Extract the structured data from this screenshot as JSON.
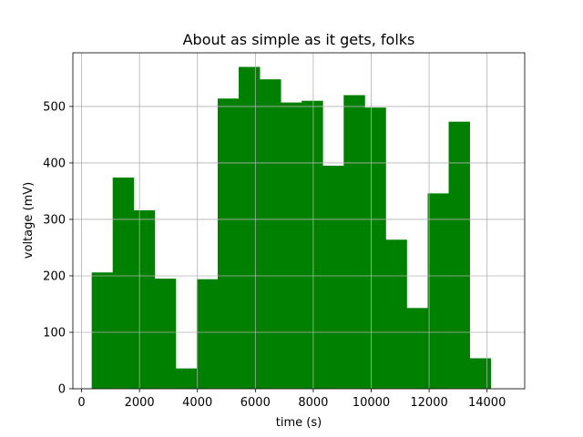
{
  "chart_data": {
    "type": "bar",
    "title": "About as simple as it gets, folks",
    "xlabel": "time (s)",
    "ylabel": "voltage (mV)",
    "xlim": [
      -300,
      15300
    ],
    "ylim": [
      0,
      595
    ],
    "xticks": [
      0,
      2000,
      4000,
      6000,
      8000,
      10000,
      12000,
      14000
    ],
    "yticks": [
      0,
      100,
      200,
      300,
      400,
      500
    ],
    "grid": true,
    "bar_color": "#008000",
    "bins": [
      {
        "x0": 350,
        "x1": 1075,
        "value": 206
      },
      {
        "x0": 1075,
        "x1": 1800,
        "value": 374
      },
      {
        "x0": 1800,
        "x1": 2525,
        "value": 316
      },
      {
        "x0": 2525,
        "x1": 3250,
        "value": 195
      },
      {
        "x0": 3250,
        "x1": 3975,
        "value": 36
      },
      {
        "x0": 3975,
        "x1": 4700,
        "value": 194
      },
      {
        "x0": 4700,
        "x1": 5425,
        "value": 514
      },
      {
        "x0": 5425,
        "x1": 6150,
        "value": 570
      },
      {
        "x0": 6150,
        "x1": 6875,
        "value": 548
      },
      {
        "x0": 6875,
        "x1": 7600,
        "value": 507
      },
      {
        "x0": 7600,
        "x1": 8325,
        "value": 510
      },
      {
        "x0": 8325,
        "x1": 9050,
        "value": 395
      },
      {
        "x0": 9050,
        "x1": 9775,
        "value": 520
      },
      {
        "x0": 9775,
        "x1": 10500,
        "value": 498
      },
      {
        "x0": 10500,
        "x1": 11225,
        "value": 264
      },
      {
        "x0": 11225,
        "x1": 11950,
        "value": 143
      },
      {
        "x0": 11950,
        "x1": 12675,
        "value": 346
      },
      {
        "x0": 12675,
        "x1": 13400,
        "value": 473
      },
      {
        "x0": 13400,
        "x1": 14125,
        "value": 54
      }
    ]
  }
}
